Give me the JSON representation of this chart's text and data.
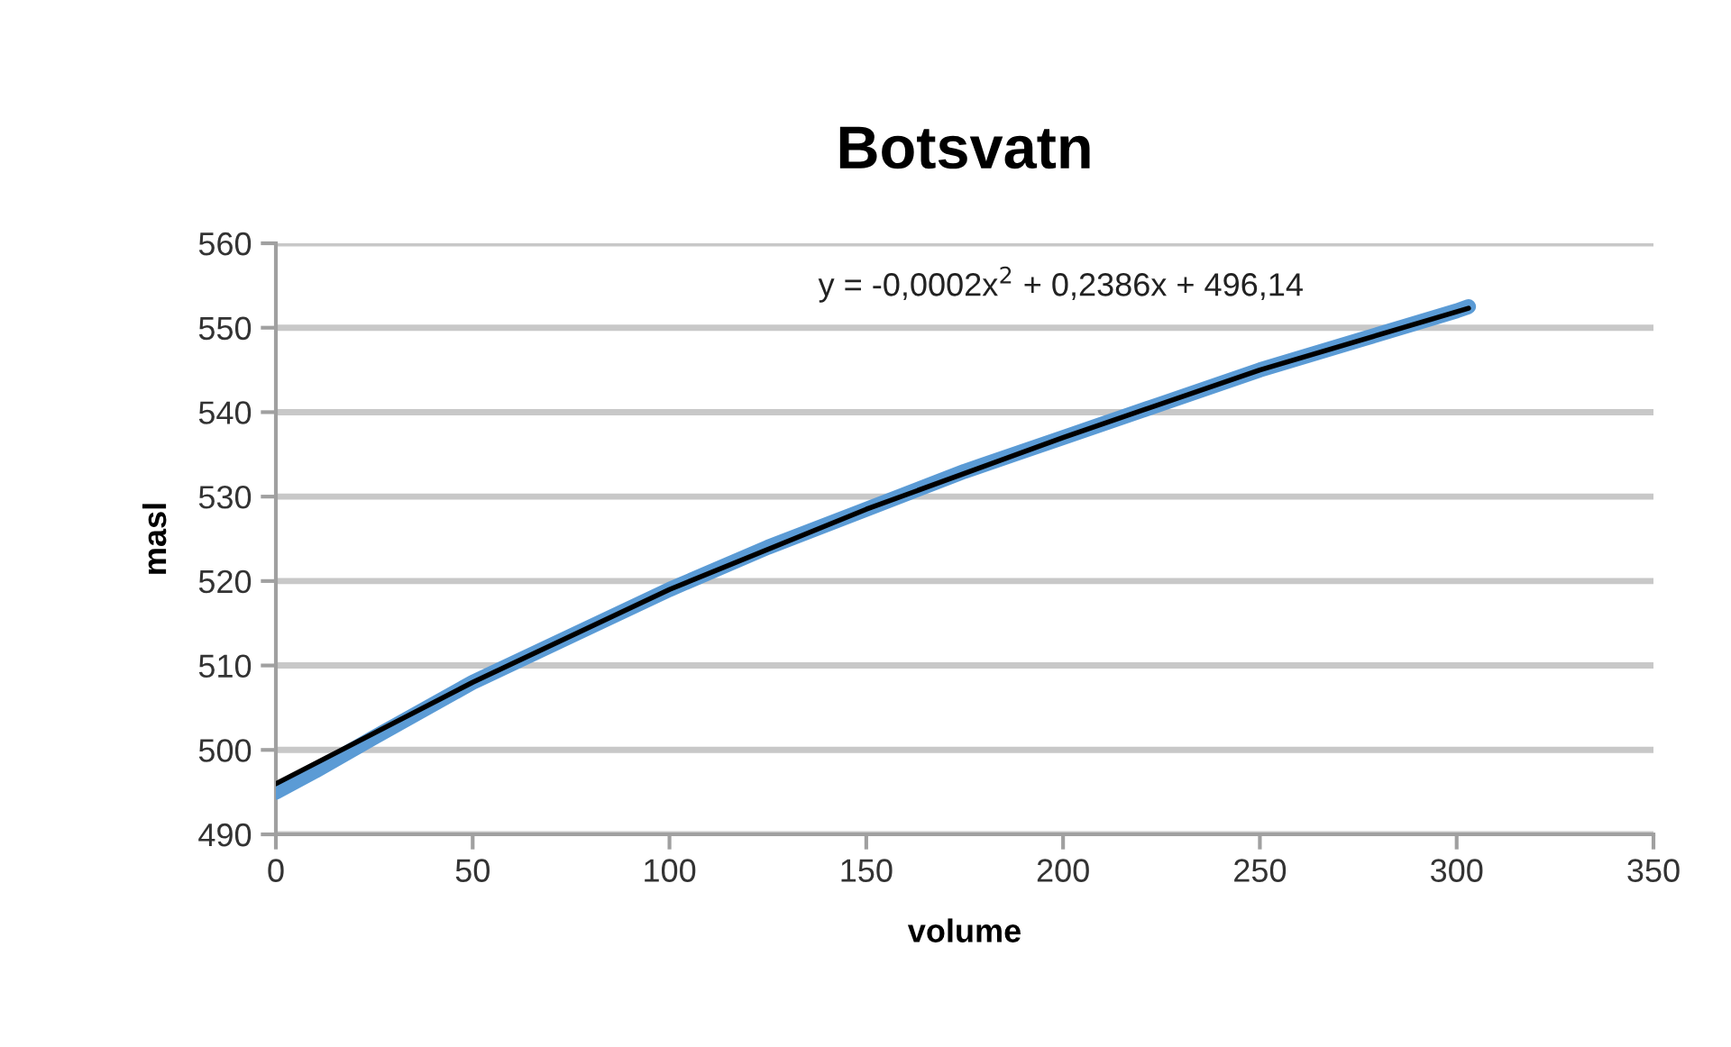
{
  "chart_data": {
    "type": "line",
    "title": "Botsvatn",
    "xlabel": "volume",
    "ylabel": "masl",
    "xlim": [
      0,
      350
    ],
    "xticks": [
      0,
      50,
      100,
      150,
      200,
      250,
      300,
      350
    ],
    "ylim": [
      490,
      560
    ],
    "yticks": [
      490,
      500,
      510,
      520,
      530,
      540,
      550,
      560
    ],
    "grid": "y",
    "series": [
      {
        "color": "#5b9bd5",
        "x": [
          0,
          10,
          25,
          50,
          75,
          100,
          125,
          150,
          175,
          200,
          225,
          250,
          275,
          300,
          303
        ],
        "values": [
          495,
          497.5,
          501.5,
          508,
          513.5,
          519,
          524,
          528.5,
          533,
          537,
          541,
          545,
          548.5,
          552,
          552.5
        ]
      },
      {
        "color": "#000000",
        "x": [
          0,
          50,
          100,
          150,
          200,
          250,
          303
        ],
        "values": [
          496,
          508,
          519,
          528.5,
          537,
          545,
          552.3
        ]
      }
    ],
    "annotations": [
      "y = -0,0002x$^{2}$ + 0,2386x + 496,14"
    ]
  }
}
